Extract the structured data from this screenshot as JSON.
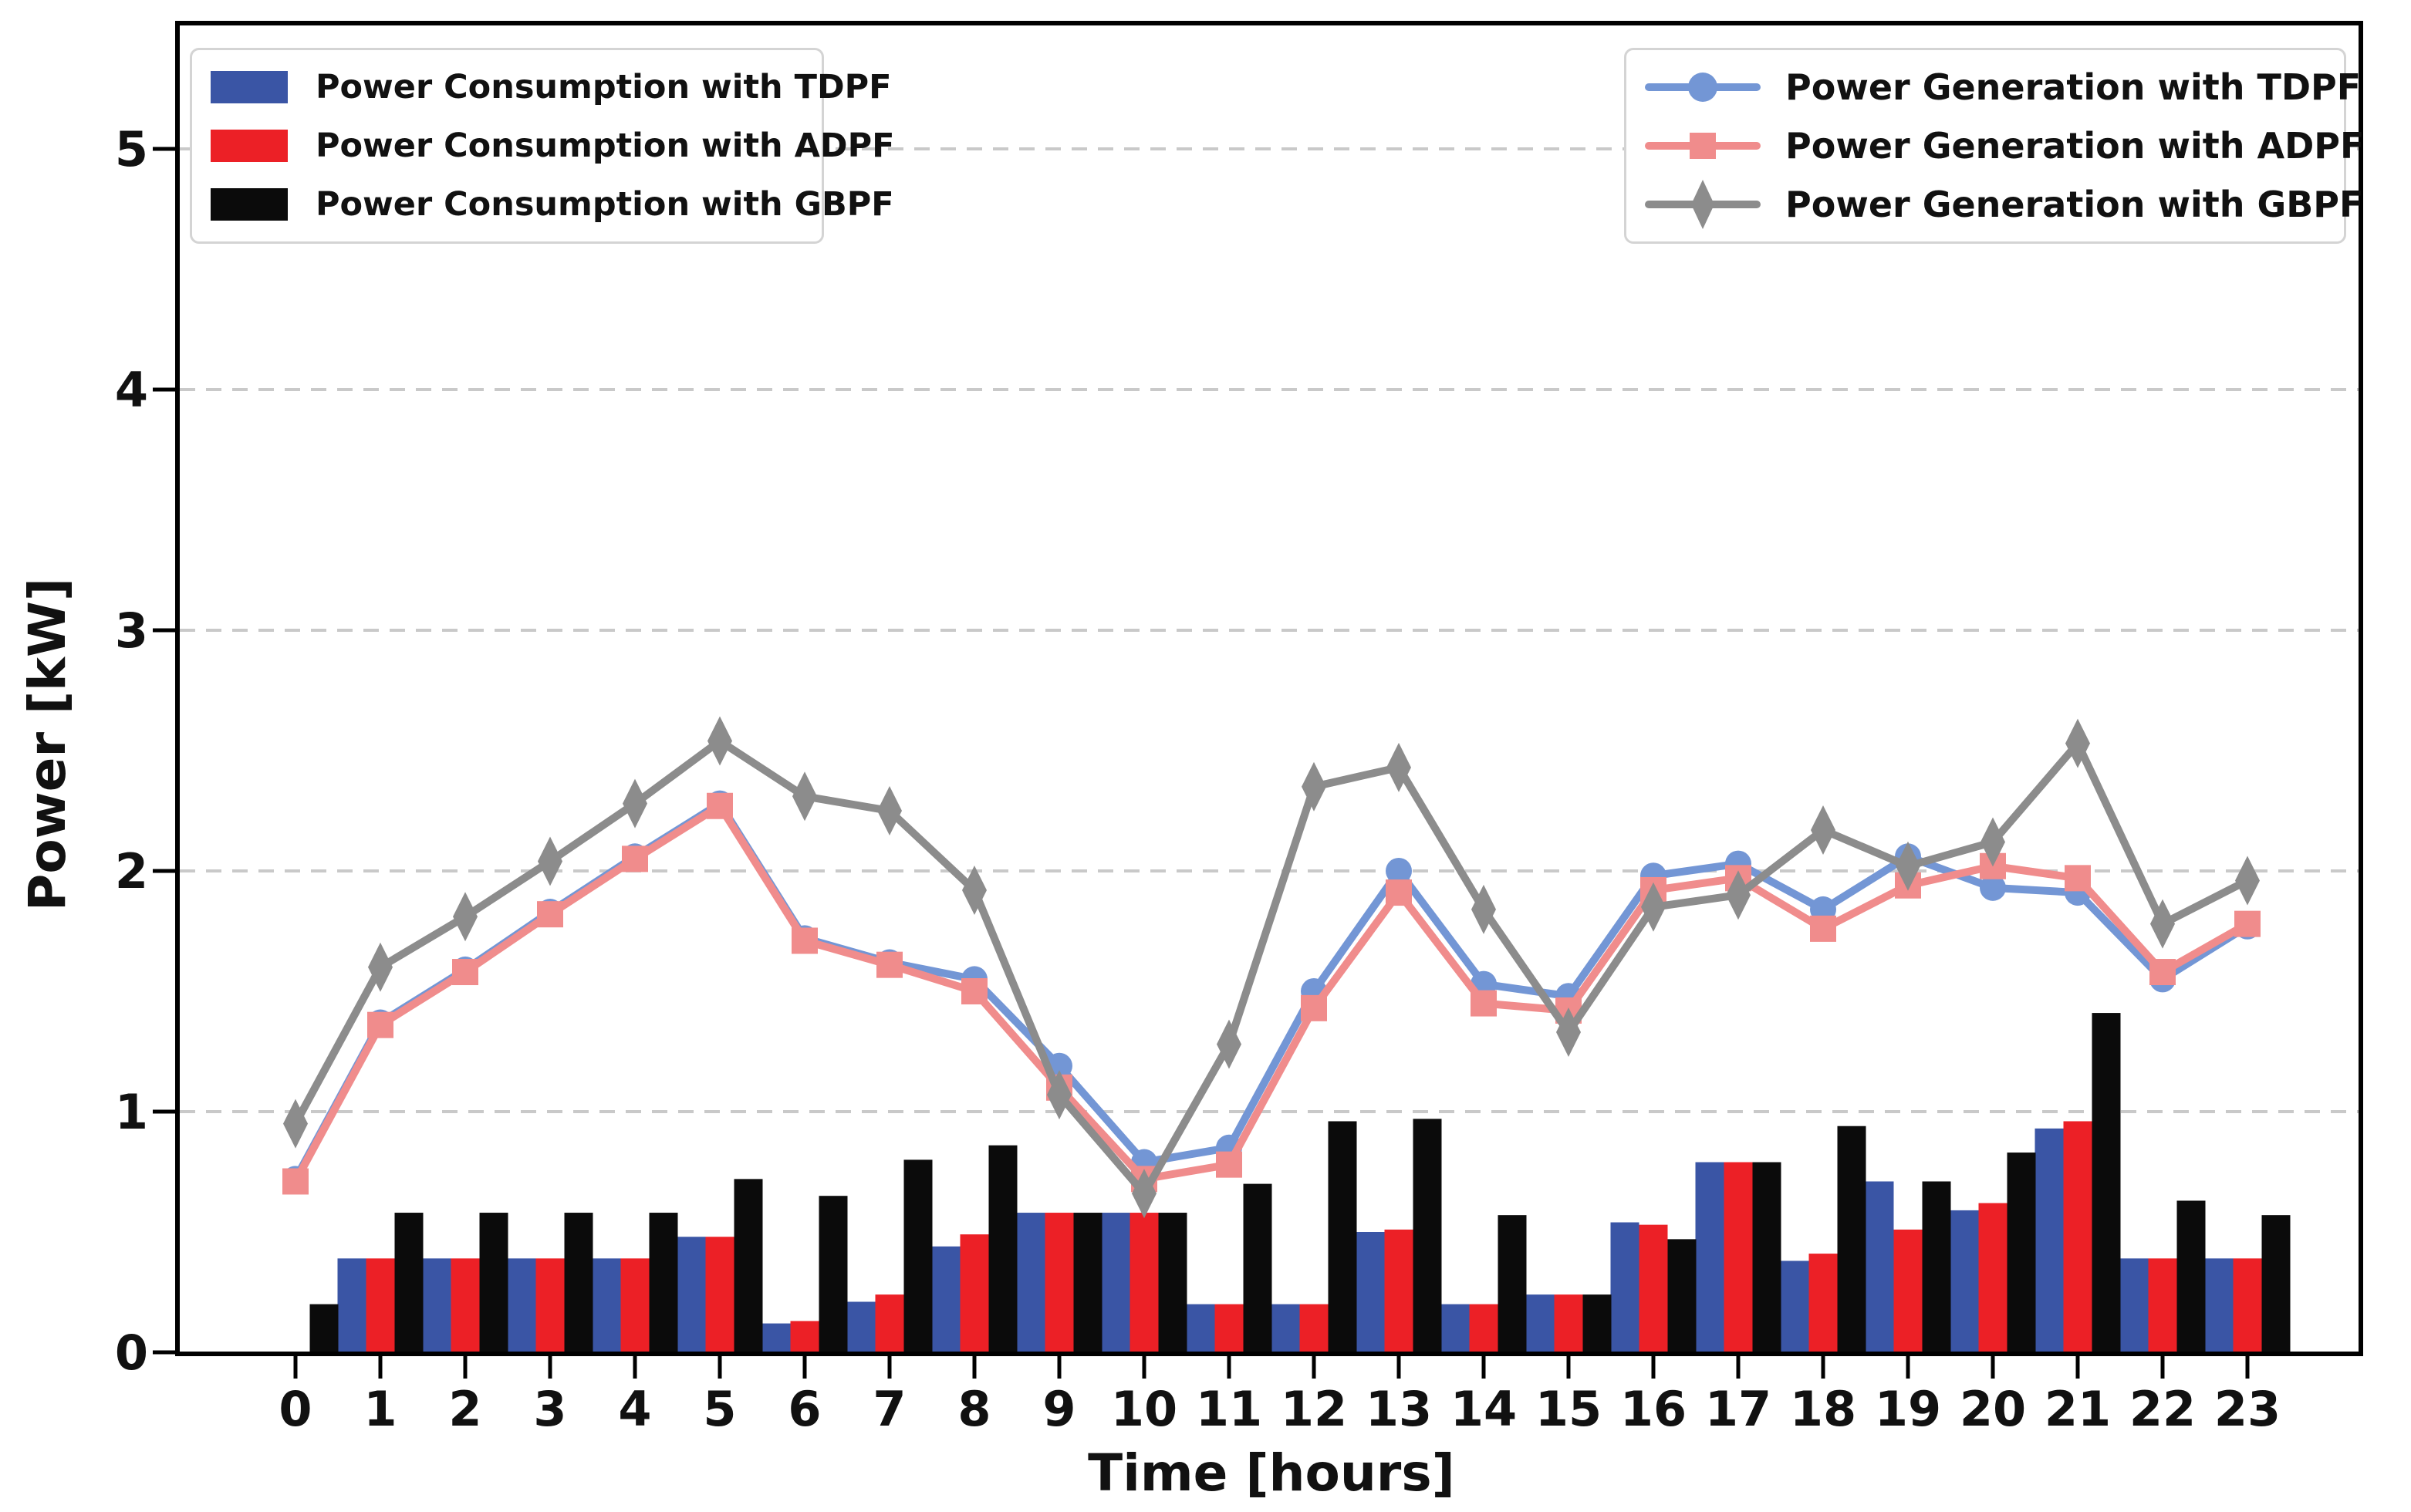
{
  "figure": {
    "x_axis_label": "Time [hours]",
    "y_axis_label": "Power [kW]",
    "x_tick_labels": [
      "0",
      "1",
      "2",
      "3",
      "4",
      "5",
      "6",
      "7",
      "8",
      "9",
      "10",
      "11",
      "12",
      "13",
      "14",
      "15",
      "16",
      "17",
      "18",
      "19",
      "20",
      "21",
      "22",
      "23"
    ],
    "y_tick_labels": [
      "0",
      "1",
      "2",
      "3",
      "4",
      "5"
    ]
  },
  "colors": {
    "bar_tdpf_blue": "#3a55a5",
    "bar_adpf_red": "#ec2026",
    "bar_gbpf_black": "#0b0b0b",
    "line_tdpf_blue": "#7396d5",
    "line_adpf_salmon": "#f08c8c",
    "line_gbpf_gray": "#8c8c8c",
    "gridline": "#c9c9c9",
    "frame": "#000000",
    "text": "#111111"
  },
  "legend_consumption": {
    "items": [
      {
        "label": "Power Consumption with TDPF",
        "color": "#3a55a5"
      },
      {
        "label": "Power Consumption with ADPF",
        "color": "#ec2026"
      },
      {
        "label": "Power Consumption with GBPF",
        "color": "#0b0b0b"
      }
    ]
  },
  "legend_generation": {
    "items": [
      {
        "label": "Power Generation with TDPF",
        "color": "#7396d5",
        "marker": "circle"
      },
      {
        "label": "Power Generation with ADPF",
        "color": "#f08c8c",
        "marker": "square"
      },
      {
        "label": "Power Generation with GBPF",
        "color": "#8c8c8c",
        "marker": "diamond"
      }
    ]
  },
  "chart_data": {
    "type": "combo-bar-line",
    "title": "",
    "xlabel": "Time [hours]",
    "ylabel": "Power [kW]",
    "categories": [
      0,
      1,
      2,
      3,
      4,
      5,
      6,
      7,
      8,
      9,
      10,
      11,
      12,
      13,
      14,
      15,
      16,
      17,
      18,
      19,
      20,
      21,
      22,
      23
    ],
    "ylim": [
      0,
      5.52
    ],
    "y_ticks": [
      0,
      1,
      2,
      3,
      4,
      5
    ],
    "grid": "horizontal-dashed",
    "legend_positions": [
      "upper left",
      "upper right"
    ],
    "bar_series": [
      {
        "name": "Power Consumption with TDPF",
        "color": "#3a55a5",
        "values": [
          0,
          0.39,
          0.39,
          0.39,
          0.39,
          0.48,
          0.12,
          0.21,
          0.44,
          0.58,
          0.58,
          0.2,
          0.2,
          0.5,
          0.2,
          0.24,
          0.54,
          0.79,
          0.38,
          0.71,
          0.59,
          0.93,
          0.39,
          0.39
        ]
      },
      {
        "name": "Power Consumption with ADPF",
        "color": "#ec2026",
        "values": [
          0,
          0.39,
          0.39,
          0.39,
          0.39,
          0.48,
          0.13,
          0.24,
          0.49,
          0.58,
          0.58,
          0.2,
          0.2,
          0.51,
          0.2,
          0.24,
          0.53,
          0.79,
          0.41,
          0.51,
          0.62,
          0.96,
          0.39,
          0.39
        ]
      },
      {
        "name": "Power Consumption with GBPF",
        "color": "#0b0b0b",
        "values": [
          0.2,
          0.58,
          0.58,
          0.58,
          0.58,
          0.72,
          0.65,
          0.8,
          0.86,
          0.58,
          0.58,
          0.7,
          0.96,
          0.97,
          0.57,
          0.24,
          0.47,
          0.79,
          0.94,
          0.71,
          0.83,
          1.41,
          0.63,
          0.57
        ]
      }
    ],
    "line_series": [
      {
        "name": "Power Generation with TDPF",
        "color": "#7396d5",
        "marker": "circle",
        "values": [
          0.72,
          1.37,
          1.59,
          1.83,
          2.06,
          2.28,
          1.72,
          1.62,
          1.55,
          1.19,
          0.79,
          0.85,
          1.5,
          2.0,
          1.53,
          1.48,
          1.98,
          2.03,
          1.84,
          2.06,
          1.93,
          1.91,
          1.55,
          1.77
        ]
      },
      {
        "name": "Power Generation with ADPF",
        "color": "#f08c8c",
        "marker": "square",
        "values": [
          0.71,
          1.36,
          1.58,
          1.82,
          2.05,
          2.27,
          1.71,
          1.61,
          1.5,
          1.1,
          0.72,
          0.78,
          1.43,
          1.91,
          1.45,
          1.42,
          1.92,
          1.97,
          1.76,
          1.94,
          2.02,
          1.97,
          1.58,
          1.78
        ]
      },
      {
        "name": "Power Generation with GBPF",
        "color": "#8c8c8c",
        "marker": "diamond",
        "values": [
          0.95,
          1.6,
          1.81,
          2.04,
          2.28,
          2.54,
          2.31,
          2.25,
          1.92,
          1.07,
          0.66,
          1.28,
          2.35,
          2.43,
          1.84,
          1.33,
          1.85,
          1.9,
          2.17,
          2.02,
          2.12,
          2.53,
          1.78,
          1.96
        ]
      }
    ]
  }
}
